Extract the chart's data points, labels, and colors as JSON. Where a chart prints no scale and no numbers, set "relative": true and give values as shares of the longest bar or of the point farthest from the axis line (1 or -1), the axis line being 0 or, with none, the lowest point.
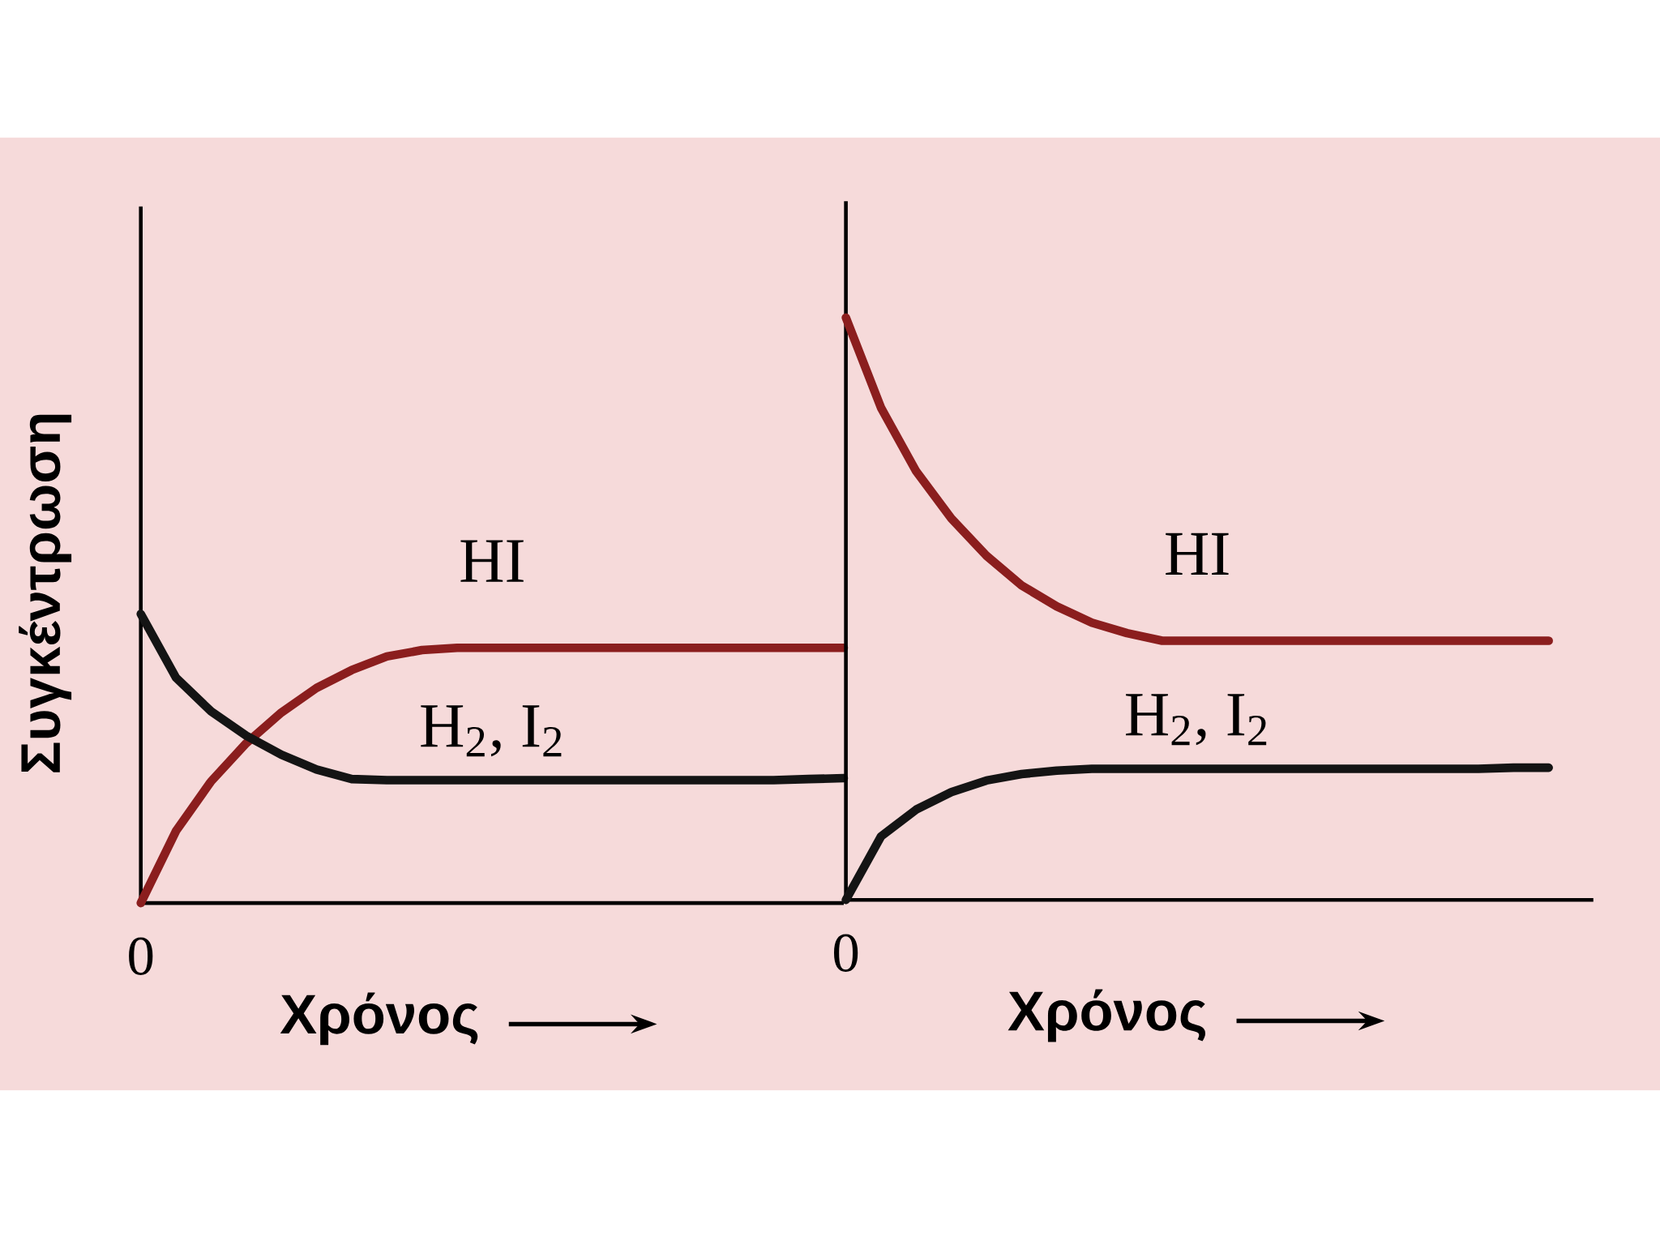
{
  "chart_data": [
    {
      "type": "line",
      "relative": true,
      "xlabel": "Χρόνος",
      "ylabel": "Συγκέντρωση",
      "annotations": [
        "0"
      ],
      "categories": [
        null,
        null,
        null,
        null,
        null,
        null,
        null,
        null,
        null,
        null,
        null,
        null,
        null,
        null,
        null,
        null,
        null,
        null,
        null,
        null,
        null
      ],
      "series": [
        {
          "name": "HI",
          "color": "#8b1e1e",
          "values": [
            0,
            0.249,
            0.421,
            0.553,
            0.659,
            0.744,
            0.806,
            0.853,
            0.875,
            0.883,
            0.883,
            0.883,
            0.883,
            0.883,
            0.883,
            0.883,
            0.883,
            0.883,
            0.883,
            0.883,
            0.883
          ]
        },
        {
          "name": "H$_{2}$, I$_{2}$",
          "color": "#141414",
          "values": [
            1,
            0.78,
            0.663,
            0.579,
            0.513,
            0.462,
            0.429,
            0.425,
            0.425,
            0.425,
            0.425,
            0.425,
            0.425,
            0.425,
            0.425,
            0.425,
            0.425,
            0.425,
            0.425,
            0.429,
            0.432
          ]
        }
      ]
    },
    {
      "type": "line",
      "relative": true,
      "xlabel": "Χρόνος",
      "annotations": [
        "0"
      ],
      "categories": [
        null,
        null,
        null,
        null,
        null,
        null,
        null,
        null,
        null,
        null,
        null,
        null,
        null,
        null,
        null,
        null,
        null,
        null,
        null,
        null,
        null
      ],
      "series": [
        {
          "name": "HI",
          "color": "#8b1e1e",
          "values": [
            1,
            0.845,
            0.736,
            0.655,
            0.591,
            0.54,
            0.504,
            0.476,
            0.458,
            0.445,
            0.445,
            0.445,
            0.445,
            0.445,
            0.445,
            0.445,
            0.445,
            0.445,
            0.445,
            0.445,
            0.445
          ]
        },
        {
          "name": "H$_{2}$, I$_{2}$",
          "color": "#141414",
          "values": [
            0,
            0.109,
            0.155,
            0.185,
            0.205,
            0.216,
            0.222,
            0.225,
            0.225,
            0.225,
            0.225,
            0.225,
            0.225,
            0.225,
            0.225,
            0.225,
            0.225,
            0.225,
            0.225,
            0.227,
            0.227
          ]
        }
      ]
    }
  ]
}
